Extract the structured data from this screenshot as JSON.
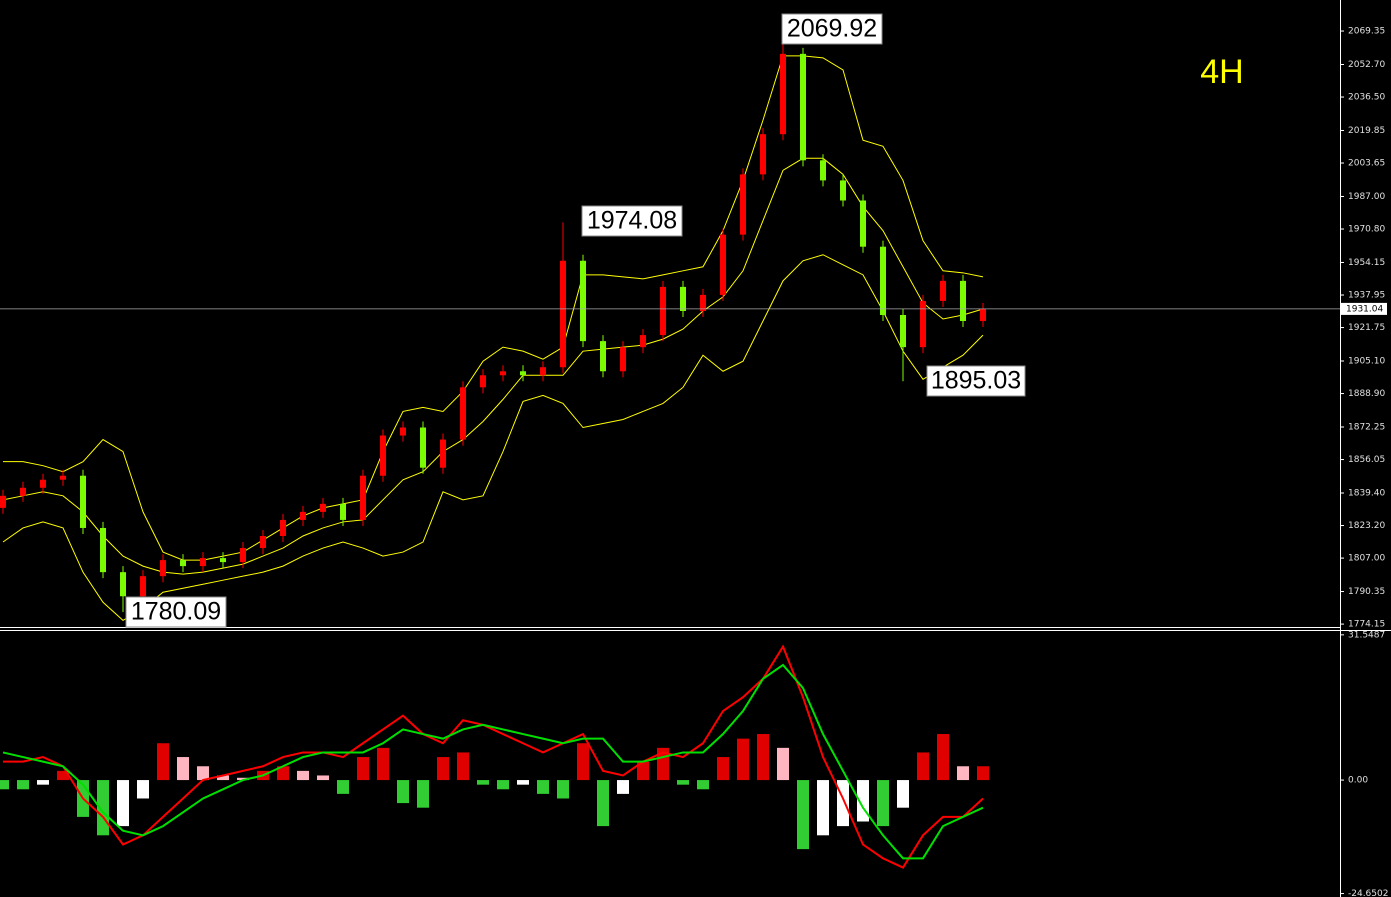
{
  "chart_data": [
    {
      "type": "candlestick",
      "timeframe": "4H",
      "open": [
        1832,
        1838,
        1842,
        1846,
        1848,
        1822,
        1800,
        1788,
        1798,
        1806,
        1803,
        1807,
        1805,
        1812,
        1818,
        1826,
        1830,
        1834,
        1826,
        1848,
        1868,
        1872,
        1852,
        1866,
        1892,
        1898,
        1900,
        1898,
        1902,
        1955,
        1915,
        1900,
        1912,
        1918,
        1942,
        1930,
        1938,
        1968,
        1998,
        2018,
        2058,
        2005,
        1995,
        1985,
        1962,
        1928,
        1912,
        1935,
        1945,
        1925
      ],
      "high": [
        1841,
        1845,
        1849,
        1851,
        1851,
        1825,
        1803,
        1801,
        1809,
        1809,
        1810,
        1810,
        1815,
        1821,
        1829,
        1833,
        1837,
        1837,
        1851,
        1871,
        1875,
        1875,
        1869,
        1895,
        1901,
        1903,
        1903,
        1905,
        1974.08,
        1958,
        1918,
        1915,
        1921,
        1945,
        1945,
        1941,
        1971,
        2001,
        2021,
        2069.92,
        2061,
        2008,
        1998,
        1988,
        1965,
        1931,
        1938,
        1948,
        1948,
        1934
      ],
      "low": [
        1829,
        1835,
        1839,
        1843,
        1819,
        1797,
        1780.09,
        1785,
        1795,
        1800,
        1800,
        1802,
        1802,
        1809,
        1815,
        1823,
        1827,
        1823,
        1823,
        1845,
        1865,
        1849,
        1849,
        1863,
        1889,
        1895,
        1895,
        1895,
        1899,
        1912,
        1897,
        1897,
        1909,
        1915,
        1927,
        1927,
        1935,
        1965,
        1995,
        2015,
        2002,
        1992,
        1982,
        1959,
        1925,
        1895.03,
        1909,
        1932,
        1922,
        1922
      ],
      "close": [
        1838,
        1842,
        1846,
        1848,
        1822,
        1800,
        1788,
        1798,
        1806,
        1803,
        1807,
        1805,
        1812,
        1818,
        1826,
        1830,
        1834,
        1826,
        1848,
        1868,
        1872,
        1852,
        1866,
        1892,
        1898,
        1900,
        1898,
        1902,
        1955,
        1915,
        1900,
        1912,
        1918,
        1942,
        1930,
        1938,
        1968,
        1998,
        2018,
        2058,
        2005,
        1995,
        1985,
        1962,
        1928,
        1912,
        1935,
        1945,
        1925,
        1931.04
      ],
      "up_color": "#ff0000",
      "down_color": "#7cfc00",
      "series": [
        {
          "color": "#ffff00",
          "values": [
            1855,
            1855,
            1853,
            1850,
            1855,
            1866,
            1860,
            1830,
            1810,
            1806,
            1806,
            1808,
            1810,
            1816,
            1822,
            1828,
            1832,
            1834,
            1836,
            1860,
            1880,
            1882,
            1880,
            1890,
            1905,
            1912,
            1910,
            1906,
            1912,
            1948,
            1948,
            1947,
            1946,
            1948,
            1950,
            1952,
            1970,
            1995,
            2025,
            2057,
            2057,
            2056,
            2050,
            2015,
            2012,
            1995,
            1965,
            1950,
            1949,
            1947
          ]
        },
        {
          "color": "#ffff00",
          "values": [
            1836,
            1838,
            1840,
            1838,
            1830,
            1818,
            1808,
            1803,
            1800,
            1799,
            1800,
            1802,
            1804,
            1808,
            1812,
            1818,
            1822,
            1825,
            1826,
            1836,
            1846,
            1850,
            1860,
            1866,
            1875,
            1886,
            1898,
            1898,
            1898,
            1910,
            1911,
            1912,
            1913,
            1916,
            1921,
            1930,
            1937,
            1950,
            1975,
            2000,
            2006,
            2006,
            1998,
            1982,
            1970,
            1952,
            1934,
            1926,
            1928,
            1931
          ]
        },
        {
          "color": "#ffff00",
          "values": [
            1815,
            1822,
            1825,
            1822,
            1800,
            1785,
            1776,
            1782,
            1790,
            1792,
            1794,
            1796,
            1798,
            1800,
            1803,
            1808,
            1812,
            1815,
            1812,
            1808,
            1810,
            1815,
            1840,
            1836,
            1838,
            1860,
            1885,
            1888,
            1884,
            1872,
            1874,
            1876,
            1880,
            1884,
            1892,
            1908,
            1900,
            1905,
            1925,
            1945,
            1955,
            1958,
            1953,
            1948,
            1930,
            1910,
            1896,
            1902,
            1908,
            1918
          ]
        }
      ],
      "annotations": [
        "2069.92",
        "1974.08",
        "1895.03",
        "1780.09"
      ],
      "current_price": 1931.04,
      "ylim": [
        1772.7,
        2084.8
      ],
      "yticks": [
        2069.35,
        {
          "value": 2052.7,
          "label": "2052.70"
        },
        {
          "value": 2036.5,
          "label": "2036.50"
        },
        2019.85,
        2003.65,
        {
          "value": 1987,
          "label": "1987.00"
        },
        {
          "value": 1970.8,
          "label": "1970.80"
        },
        1954.15,
        1937.95,
        1921.75,
        {
          "value": 1905.1,
          "label": "1905.10"
        },
        {
          "value": 1888.9,
          "label": "1888.90"
        },
        1872.25,
        1856.05,
        {
          "value": 1839.4,
          "label": "1839.40"
        },
        {
          "value": 1823.2,
          "label": "1823.20"
        },
        {
          "value": 1807,
          "label": "1807.00"
        },
        1790.35,
        1774.15
      ]
    },
    {
      "type": "macd",
      "values": [
        -2,
        -2,
        -1,
        2,
        -8,
        -12,
        -10,
        -4,
        8,
        5,
        3,
        1,
        0.5,
        2,
        3,
        2,
        1,
        -3,
        5,
        7,
        -5,
        -6,
        5,
        6,
        -1,
        -2,
        -1,
        -3,
        -4,
        8,
        -10,
        -3,
        4,
        7,
        -1,
        -2,
        5,
        9,
        10,
        7,
        -15,
        -12,
        -10,
        -9,
        -10,
        -6,
        6,
        10,
        3,
        3
      ],
      "up_color": "#e00000",
      "fade_up_color": "#ffb6c1",
      "down_color": "#32cd32",
      "fade_down_color": "#ffffff",
      "series": [
        {
          "color": "#ff0000",
          "values": [
            4,
            4,
            5,
            3,
            -4,
            -8,
            -14,
            -12,
            -8,
            -4,
            0,
            1,
            2,
            3,
            5,
            6,
            6,
            5,
            8,
            11,
            14,
            10,
            8,
            13,
            12,
            10,
            8,
            6,
            8,
            10,
            2,
            1,
            4,
            6,
            5,
            8,
            15,
            18,
            22,
            29,
            18,
            5,
            -4,
            -14,
            -17,
            -19,
            -12,
            -8,
            -8,
            -4
          ]
        },
        {
          "color": "#00e000",
          "values": [
            6,
            5,
            4,
            3,
            -1,
            -7,
            -11,
            -12,
            -10,
            -7,
            -4,
            -2,
            0,
            1,
            3,
            5,
            6,
            6,
            6,
            8,
            11,
            10,
            9,
            11,
            12,
            11,
            10,
            9,
            8,
            9,
            9,
            4,
            4,
            5,
            6,
            6,
            10,
            15,
            22,
            25,
            20,
            10,
            2,
            -6,
            -12,
            -17,
            -17,
            -10,
            -8,
            -6
          ]
        }
      ],
      "ylim": [
        -25.4,
        32.6
      ],
      "yticks": [
        31.5487,
        {
          "value": 0,
          "label": "0.00"
        },
        -24.6502
      ]
    }
  ]
}
